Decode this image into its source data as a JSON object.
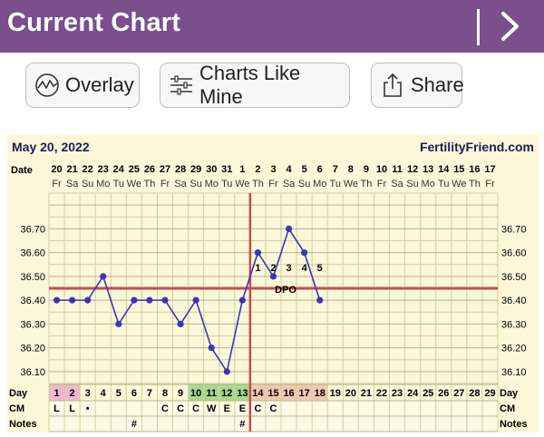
{
  "app": {
    "title": "Current Chart",
    "accent": "#7a4f8c",
    "next_icon": "chevron-right-icon"
  },
  "toolbar": {
    "overlay_label": "Overlay",
    "charts_like_mine_label": "Charts Like Mine",
    "share_label": "Share"
  },
  "chart_header": {
    "date_text": "May 20, 2022",
    "brand_text": "FertilityFriend.com"
  },
  "row_labels": {
    "date": "Date",
    "day": "Day",
    "cm": "CM",
    "notes": "Notes"
  },
  "coverline_label": "DPO",
  "colors": {
    "purple": "#7a4f8c",
    "line": "#3b35b8",
    "coverline": "#c0504d",
    "grid": "#d2cfa0",
    "fertile": "#a8d98f",
    "luteal": "#f3c7b4",
    "period": "#f1b9c9",
    "panel": "#fbf7d8"
  },
  "chart_data": {
    "type": "line",
    "dates": [
      "20",
      "21",
      "22",
      "23",
      "24",
      "25",
      "26",
      "27",
      "28",
      "29",
      "30",
      "31",
      "1",
      "2",
      "3",
      "4",
      "5",
      "6",
      "7",
      "8",
      "9",
      "10",
      "11",
      "12",
      "13",
      "14",
      "15",
      "16",
      "17"
    ],
    "weekdays": [
      "Fr",
      "Sa",
      "Su",
      "Mo",
      "Tu",
      "We",
      "Th",
      "Fr",
      "Sa",
      "Su",
      "Mo",
      "Tu",
      "We",
      "Th",
      "Fr",
      "Sa",
      "Su",
      "Mo",
      "Tu",
      "We",
      "Th",
      "Fr",
      "Sa",
      "Su",
      "Mo",
      "Tu",
      "We",
      "Th",
      "Fr"
    ],
    "cycle_days": [
      "1",
      "2",
      "3",
      "4",
      "5",
      "6",
      "7",
      "8",
      "9",
      "10",
      "11",
      "12",
      "13",
      "14",
      "15",
      "16",
      "17",
      "18",
      "19",
      "20",
      "21",
      "22",
      "23",
      "24",
      "25",
      "26",
      "27",
      "28",
      "29"
    ],
    "temperatures": [
      36.4,
      36.4,
      36.4,
      36.5,
      36.3,
      36.4,
      36.4,
      36.4,
      36.3,
      36.4,
      36.2,
      36.1,
      36.4,
      36.6,
      36.5,
      36.7,
      36.6,
      36.4
    ],
    "y_ticks": [
      "36.70",
      "36.60",
      "36.50",
      "36.40",
      "36.30",
      "36.20",
      "36.10"
    ],
    "ylim": [
      36.05,
      36.85
    ],
    "coverline": 36.45,
    "ovulation_day": 13,
    "dpo_labels": [
      "1",
      "2",
      "3",
      "4",
      "5"
    ],
    "cm": [
      "L",
      "L",
      "•",
      "",
      "",
      "",
      "",
      "C",
      "C",
      "C",
      "W",
      "E",
      "E",
      "C",
      "C",
      "",
      "",
      "",
      "",
      "",
      "",
      "",
      "",
      "",
      "",
      "",
      "",
      "",
      ""
    ],
    "notes": [
      "",
      "",
      "",
      "",
      "",
      "#",
      "",
      "",
      "",
      "",
      "",
      "",
      "#",
      "",
      "",
      "",
      "",
      "",
      "",
      "",
      "",
      "",
      "",
      "",
      "",
      "",
      "",
      "",
      ""
    ],
    "period_days": [
      1,
      2
    ],
    "fertile_days": [
      10,
      11,
      12,
      13
    ],
    "luteal_days": [
      14,
      15,
      16,
      17,
      18
    ],
    "grid": true
  }
}
